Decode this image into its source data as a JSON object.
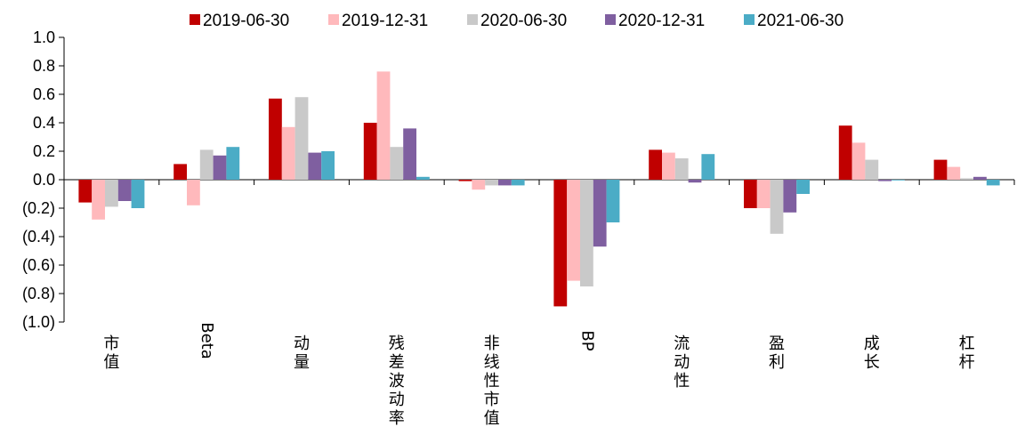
{
  "chart_data": {
    "type": "bar",
    "categories": [
      "市值",
      "Beta",
      "动量",
      "残差波动率",
      "非线性市值",
      "BP",
      "流动性",
      "盈利",
      "成长",
      "杠杆"
    ],
    "series": [
      {
        "name": "2019-06-30",
        "color": "#C00000",
        "values": [
          -0.16,
          0.11,
          0.57,
          0.4,
          -0.01,
          -0.89,
          0.21,
          -0.2,
          0.38,
          0.14
        ]
      },
      {
        "name": "2019-12-31",
        "color": "#FFB9BC",
        "values": [
          -0.28,
          -0.18,
          0.37,
          0.76,
          -0.07,
          -0.71,
          0.19,
          -0.2,
          0.26,
          0.09
        ]
      },
      {
        "name": "2020-06-30",
        "color": "#C9C9C9",
        "values": [
          -0.19,
          0.21,
          0.58,
          0.23,
          -0.04,
          -0.75,
          0.15,
          -0.38,
          0.14,
          0.01
        ]
      },
      {
        "name": "2020-12-31",
        "color": "#7F5FA0",
        "values": [
          -0.15,
          0.17,
          0.19,
          0.36,
          -0.04,
          -0.47,
          -0.02,
          -0.23,
          -0.01,
          0.02
        ]
      },
      {
        "name": "2021-06-30",
        "color": "#4BACC6",
        "values": [
          -0.2,
          0.23,
          0.2,
          0.02,
          -0.04,
          -0.3,
          0.18,
          -0.1,
          0.0,
          -0.04
        ]
      }
    ],
    "ylim": [
      -1.0,
      1.0
    ],
    "yticks": [
      "1.0",
      "0.8",
      "0.6",
      "0.4",
      "0.2",
      "0.0",
      "(0.2)",
      "(0.4)",
      "(0.6)",
      "(0.8)",
      "(1.0)"
    ],
    "grid": false,
    "legend": "top"
  }
}
